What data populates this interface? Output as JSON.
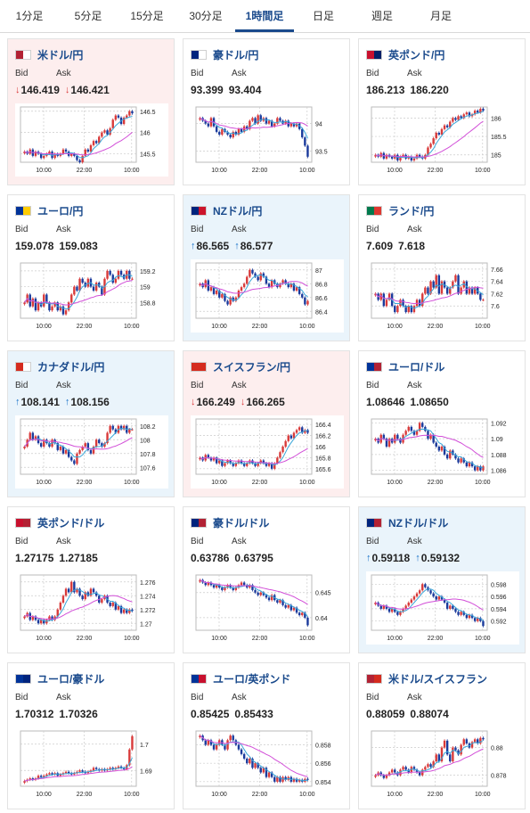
{
  "tabs": [
    {
      "label": "1分足",
      "active": false
    },
    {
      "label": "5分足",
      "active": false
    },
    {
      "label": "15分足",
      "active": false
    },
    {
      "label": "30分足",
      "active": false
    },
    {
      "label": "1時間足",
      "active": true
    },
    {
      "label": "日足",
      "active": false
    },
    {
      "label": "週足",
      "active": false
    },
    {
      "label": "月足",
      "active": false
    }
  ],
  "labels": {
    "bid": "Bid",
    "ask": "Ask"
  },
  "colors": {
    "up_candle": "#d93a3a",
    "down_candle": "#1a3a9c",
    "ma_short": "#3aa7d9",
    "ma_long": "#d24fd8",
    "title": "#1a4a8c",
    "arrow_up": "#1a73c9",
    "arrow_down": "#d93a3a"
  },
  "cards": [
    {
      "title": "米ドル/円",
      "flag": [
        "#b22234",
        "#ffffff"
      ],
      "bid": "146.419",
      "ask": "146.421",
      "bid_dir": "down",
      "ask_dir": "down",
      "bg": "red",
      "chart": {
        "ticks": [
          "146.5",
          "146",
          "145.5"
        ],
        "ylim": [
          145.3,
          146.6
        ],
        "xlabels": [
          "10:00",
          "22:00",
          "10:00"
        ],
        "closes": [
          145.55,
          145.5,
          145.6,
          145.45,
          145.55,
          145.5,
          145.4,
          145.45,
          145.5,
          145.55,
          145.4,
          145.5,
          145.45,
          145.5,
          145.6,
          145.55,
          145.45,
          145.5,
          145.45,
          145.35,
          145.3,
          145.45,
          145.6,
          145.55,
          145.7,
          145.8,
          145.75,
          145.9,
          146.0,
          146.05,
          145.95,
          146.1,
          146.3,
          146.4,
          146.35,
          146.2,
          146.35,
          146.4,
          146.5,
          146.45
        ]
      }
    },
    {
      "title": "豪ドル/円",
      "flag": [
        "#00247d",
        "#ffffff"
      ],
      "bid": "93.399",
      "ask": "93.404",
      "bid_dir": "",
      "ask_dir": "",
      "bg": "",
      "chart": {
        "ticks": [
          "94",
          "93.5"
        ],
        "ylim": [
          93.3,
          94.3
        ],
        "xlabels": [
          "10:00",
          "22:00",
          "10:00"
        ],
        "closes": [
          94.1,
          94.05,
          94.0,
          93.95,
          94.1,
          93.95,
          93.85,
          93.8,
          93.9,
          93.85,
          93.8,
          93.75,
          93.85,
          93.8,
          93.9,
          93.85,
          93.95,
          93.9,
          94.05,
          94.1,
          94.0,
          94.15,
          94.05,
          94.1,
          94.0,
          94.05,
          93.95,
          94.0,
          94.1,
          94.05,
          94.0,
          94.05,
          93.95,
          94.0,
          93.95,
          94.0,
          93.9,
          93.75,
          93.6,
          93.4
        ]
      }
    },
    {
      "title": "英ポンド/円",
      "flag": [
        "#c8102e",
        "#012169"
      ],
      "bid": "186.213",
      "ask": "186.220",
      "bid_dir": "",
      "ask_dir": "",
      "bg": "",
      "chart": {
        "ticks": [
          "186",
          "185.5",
          "185"
        ],
        "ylim": [
          184.8,
          186.3
        ],
        "xlabels": [
          "10:00",
          "22:00",
          "10:00"
        ],
        "closes": [
          185.0,
          184.95,
          185.05,
          184.9,
          185.0,
          184.95,
          184.9,
          185.0,
          184.85,
          184.95,
          185.0,
          184.9,
          184.95,
          184.85,
          184.9,
          185.0,
          184.95,
          184.9,
          185.0,
          185.2,
          185.3,
          185.45,
          185.6,
          185.55,
          185.7,
          185.8,
          185.75,
          185.9,
          186.0,
          185.95,
          186.05,
          186.0,
          186.1,
          186.15,
          186.05,
          186.1,
          186.2,
          186.15,
          186.25,
          186.2
        ]
      }
    },
    {
      "title": "ユーロ/円",
      "flag": [
        "#003399",
        "#ffcc00"
      ],
      "bid": "159.078",
      "ask": "159.083",
      "bid_dir": "",
      "ask_dir": "",
      "bg": "",
      "chart": {
        "ticks": [
          "159.2",
          "159",
          "158.8"
        ],
        "ylim": [
          158.6,
          159.3
        ],
        "xlabels": [
          "10:00",
          "22:00",
          "10:00"
        ],
        "closes": [
          158.8,
          158.9,
          158.75,
          158.85,
          158.7,
          158.8,
          158.75,
          158.9,
          158.8,
          158.7,
          158.75,
          158.8,
          158.7,
          158.75,
          158.65,
          158.7,
          158.8,
          158.9,
          159.0,
          158.95,
          159.1,
          159.05,
          159.0,
          159.1,
          159.0,
          158.95,
          159.05,
          159.0,
          158.9,
          159.1,
          159.2,
          159.15,
          159.05,
          159.1,
          159.2,
          159.15,
          159.1,
          159.2,
          159.1,
          159.1
        ]
      }
    },
    {
      "title": "NZドル/円",
      "flag": [
        "#00247d",
        "#cc142b"
      ],
      "bid": "86.565",
      "ask": "86.577",
      "bid_dir": "up",
      "ask_dir": "up",
      "bg": "blue",
      "chart": {
        "ticks": [
          "87",
          "86.8",
          "86.6",
          "86.4"
        ],
        "ylim": [
          86.3,
          87.1
        ],
        "xlabels": [
          "10:00",
          "22:00",
          "10:00"
        ],
        "closes": [
          86.8,
          86.75,
          86.85,
          86.7,
          86.75,
          86.65,
          86.7,
          86.6,
          86.65,
          86.55,
          86.5,
          86.6,
          86.55,
          86.6,
          86.7,
          86.75,
          86.8,
          86.9,
          87.0,
          86.95,
          86.9,
          86.85,
          86.95,
          86.9,
          86.8,
          86.75,
          86.85,
          86.8,
          86.75,
          86.8,
          86.85,
          86.8,
          86.75,
          86.8,
          86.7,
          86.75,
          86.65,
          86.6,
          86.5,
          86.55
        ]
      }
    },
    {
      "title": "ランド/円",
      "flag": [
        "#007a4d",
        "#de3831"
      ],
      "bid": "7.609",
      "ask": "7.618",
      "bid_dir": "",
      "ask_dir": "",
      "bg": "",
      "chart": {
        "ticks": [
          "7.66",
          "7.64",
          "7.62",
          "7.6"
        ],
        "ylim": [
          7.58,
          7.67
        ],
        "xlabels": [
          "10:00",
          "22:00",
          "10:00"
        ],
        "closes": [
          7.62,
          7.61,
          7.62,
          7.6,
          7.61,
          7.62,
          7.6,
          7.59,
          7.6,
          7.61,
          7.6,
          7.59,
          7.6,
          7.59,
          7.6,
          7.61,
          7.6,
          7.62,
          7.63,
          7.62,
          7.64,
          7.63,
          7.65,
          7.62,
          7.64,
          7.63,
          7.62,
          7.63,
          7.64,
          7.65,
          7.62,
          7.63,
          7.64,
          7.62,
          7.63,
          7.62,
          7.63,
          7.62,
          7.61,
          7.61
        ]
      }
    },
    {
      "title": "カナダドル/円",
      "flag": [
        "#d52b1e",
        "#ffffff"
      ],
      "bid": "108.141",
      "ask": "108.156",
      "bid_dir": "up",
      "ask_dir": "up",
      "bg": "blue",
      "chart": {
        "ticks": [
          "108.2",
          "108",
          "107.8",
          "107.6"
        ],
        "ylim": [
          107.5,
          108.3
        ],
        "xlabels": [
          "10:00",
          "22:00",
          "10:00"
        ],
        "closes": [
          107.9,
          108.0,
          108.1,
          108.0,
          108.05,
          107.95,
          107.9,
          108.0,
          107.95,
          107.9,
          108.0,
          107.95,
          107.85,
          107.9,
          107.8,
          107.85,
          107.75,
          107.7,
          107.65,
          107.8,
          107.85,
          107.9,
          107.95,
          107.85,
          107.8,
          107.9,
          108.0,
          107.95,
          107.9,
          107.95,
          108.1,
          108.2,
          108.15,
          108.1,
          108.2,
          108.15,
          108.2,
          108.1,
          108.15,
          108.15
        ]
      }
    },
    {
      "title": "スイスフラン/円",
      "flag": [
        "#d52b1e",
        "#d52b1e"
      ],
      "bid": "166.249",
      "ask": "166.265",
      "bid_dir": "down",
      "ask_dir": "down",
      "bg": "red",
      "chart": {
        "ticks": [
          "166.4",
          "166.2",
          "166",
          "165.8",
          "165.6"
        ],
        "ylim": [
          165.5,
          166.5
        ],
        "xlabels": [
          "10:00",
          "22:00",
          "10:00"
        ],
        "closes": [
          165.8,
          165.75,
          165.85,
          165.8,
          165.75,
          165.8,
          165.7,
          165.75,
          165.65,
          165.7,
          165.75,
          165.7,
          165.65,
          165.7,
          165.75,
          165.7,
          165.65,
          165.7,
          165.75,
          165.7,
          165.65,
          165.7,
          165.75,
          165.7,
          165.65,
          165.7,
          165.6,
          165.7,
          165.8,
          165.9,
          166.0,
          166.1,
          166.2,
          166.15,
          166.25,
          166.3,
          166.35,
          166.25,
          166.3,
          166.25
        ]
      }
    },
    {
      "title": "ユーロ/ドル",
      "flag": [
        "#003399",
        "#b22234"
      ],
      "bid": "1.08646",
      "ask": "1.08650",
      "bid_dir": "",
      "ask_dir": "",
      "bg": "",
      "chart": {
        "ticks": [
          "1.092",
          "1.09",
          "1.088",
          "1.086"
        ],
        "ylim": [
          1.0855,
          1.0925
        ],
        "xlabels": [
          "10:00",
          "22:00",
          "10:00"
        ],
        "closes": [
          1.09,
          1.0895,
          1.0905,
          1.09,
          1.089,
          1.09,
          1.0895,
          1.0905,
          1.09,
          1.0895,
          1.0905,
          1.091,
          1.0915,
          1.091,
          1.0905,
          1.091,
          1.092,
          1.0915,
          1.091,
          1.09,
          1.0905,
          1.0895,
          1.089,
          1.0885,
          1.089,
          1.088,
          1.0875,
          1.0885,
          1.088,
          1.0875,
          1.087,
          1.0875,
          1.087,
          1.0865,
          1.087,
          1.0865,
          1.086,
          1.0865,
          1.086,
          1.0865
        ]
      }
    },
    {
      "title": "英ポンド/ドル",
      "flag": [
        "#c8102e",
        "#b22234"
      ],
      "bid": "1.27175",
      "ask": "1.27185",
      "bid_dir": "",
      "ask_dir": "",
      "bg": "",
      "chart": {
        "ticks": [
          "1.276",
          "1.274",
          "1.272",
          "1.27"
        ],
        "ylim": [
          1.269,
          1.277
        ],
        "xlabels": [
          "10:00",
          "22:00",
          "10:00"
        ],
        "closes": [
          1.271,
          1.2715,
          1.2705,
          1.271,
          1.2705,
          1.27,
          1.2705,
          1.27,
          1.2705,
          1.271,
          1.2705,
          1.271,
          1.272,
          1.273,
          1.274,
          1.275,
          1.2745,
          1.276,
          1.2745,
          1.275,
          1.274,
          1.2735,
          1.2745,
          1.274,
          1.275,
          1.2745,
          1.274,
          1.273,
          1.2735,
          1.274,
          1.273,
          1.2725,
          1.273,
          1.272,
          1.2725,
          1.2715,
          1.272,
          1.2715,
          1.272,
          1.2718
        ]
      }
    },
    {
      "title": "豪ドル/ドル",
      "flag": [
        "#00247d",
        "#b22234"
      ],
      "bid": "0.63786",
      "ask": "0.63795",
      "bid_dir": "",
      "ask_dir": "",
      "bg": "",
      "chart": {
        "ticks": [
          "0.645",
          "0.64"
        ],
        "ylim": [
          0.6375,
          0.6485
        ],
        "xlabels": [
          "10:00",
          "22:00",
          "10:00"
        ],
        "closes": [
          0.6475,
          0.647,
          0.6465,
          0.647,
          0.6465,
          0.646,
          0.6465,
          0.646,
          0.6455,
          0.646,
          0.6465,
          0.646,
          0.6455,
          0.646,
          0.6465,
          0.647,
          0.6465,
          0.646,
          0.6465,
          0.6455,
          0.645,
          0.6445,
          0.645,
          0.6445,
          0.644,
          0.6435,
          0.6445,
          0.6435,
          0.643,
          0.6435,
          0.6425,
          0.642,
          0.6425,
          0.6415,
          0.642,
          0.641,
          0.6405,
          0.641,
          0.64,
          0.6385
        ]
      }
    },
    {
      "title": "NZドル/ドル",
      "flag": [
        "#00247d",
        "#b22234"
      ],
      "bid": "0.59118",
      "ask": "0.59132",
      "bid_dir": "up",
      "ask_dir": "up",
      "bg": "blue",
      "chart": {
        "ticks": [
          "0.598",
          "0.596",
          "0.594",
          "0.592"
        ],
        "ylim": [
          0.5905,
          0.5995
        ],
        "xlabels": [
          "10:00",
          "22:00",
          "10:00"
        ],
        "closes": [
          0.595,
          0.5945,
          0.594,
          0.5945,
          0.594,
          0.5935,
          0.594,
          0.5935,
          0.593,
          0.5935,
          0.594,
          0.5945,
          0.595,
          0.5955,
          0.596,
          0.5965,
          0.597,
          0.598,
          0.5975,
          0.597,
          0.5965,
          0.596,
          0.5955,
          0.596,
          0.5955,
          0.595,
          0.594,
          0.5945,
          0.594,
          0.5935,
          0.593,
          0.5935,
          0.593,
          0.5925,
          0.593,
          0.5925,
          0.592,
          0.5925,
          0.592,
          0.5912
        ]
      }
    },
    {
      "title": "ユーロ/豪ドル",
      "flag": [
        "#003399",
        "#00247d"
      ],
      "bid": "1.70312",
      "ask": "1.70326",
      "bid_dir": "",
      "ask_dir": "",
      "bg": "",
      "chart": {
        "ticks": [
          "1.7",
          "1.69"
        ],
        "ylim": [
          1.684,
          1.705
        ],
        "xlabels": [
          "10:00",
          "22:00",
          "10:00"
        ],
        "closes": [
          1.686,
          1.6865,
          1.687,
          1.6865,
          1.687,
          1.688,
          1.6875,
          1.688,
          1.6885,
          1.689,
          1.6885,
          1.689,
          1.688,
          1.6885,
          1.689,
          1.6895,
          1.689,
          1.6885,
          1.689,
          1.6895,
          1.69,
          1.6895,
          1.689,
          1.6895,
          1.69,
          1.691,
          1.6905,
          1.69,
          1.6905,
          1.69,
          1.6905,
          1.691,
          1.6905,
          1.691,
          1.6915,
          1.691,
          1.6905,
          1.692,
          1.698,
          1.703
        ]
      }
    },
    {
      "title": "ユーロ/英ポンド",
      "flag": [
        "#003399",
        "#c8102e"
      ],
      "bid": "0.85425",
      "ask": "0.85433",
      "bid_dir": "",
      "ask_dir": "",
      "bg": "",
      "chart": {
        "ticks": [
          "0.858",
          "0.856",
          "0.854"
        ],
        "ylim": [
          0.8535,
          0.8595
        ],
        "xlabels": [
          "10:00",
          "22:00",
          "10:00"
        ],
        "closes": [
          0.859,
          0.8585,
          0.858,
          0.8585,
          0.858,
          0.8575,
          0.858,
          0.8585,
          0.858,
          0.8575,
          0.8585,
          0.859,
          0.8585,
          0.858,
          0.8575,
          0.857,
          0.8565,
          0.856,
          0.8565,
          0.8555,
          0.856,
          0.8555,
          0.855,
          0.8555,
          0.8545,
          0.855,
          0.8545,
          0.854,
          0.8545,
          0.854,
          0.8545,
          0.8542,
          0.8545,
          0.854,
          0.8543,
          0.854,
          0.8542,
          0.854,
          0.8543,
          0.8542
        ]
      }
    },
    {
      "title": "米ドル/スイスフラン",
      "flag": [
        "#b22234",
        "#d52b1e"
      ],
      "bid": "0.88059",
      "ask": "0.88074",
      "bid_dir": "",
      "ask_dir": "",
      "bg": "",
      "chart": {
        "ticks": [
          "0.88",
          "0.878"
        ],
        "ylim": [
          0.8772,
          0.8812
        ],
        "xlabels": [
          "10:00",
          "22:00",
          "10:00"
        ],
        "closes": [
          0.878,
          0.8782,
          0.878,
          0.8778,
          0.878,
          0.8782,
          0.8784,
          0.8782,
          0.878,
          0.8784,
          0.8786,
          0.8784,
          0.8782,
          0.8786,
          0.8784,
          0.8782,
          0.878,
          0.8784,
          0.8786,
          0.8788,
          0.8786,
          0.879,
          0.8795,
          0.879,
          0.88,
          0.8805,
          0.8795,
          0.879,
          0.88,
          0.8798,
          0.8795,
          0.8802,
          0.8806,
          0.8803,
          0.88,
          0.8804,
          0.8806,
          0.8803,
          0.8807,
          0.8806
        ]
      }
    }
  ]
}
